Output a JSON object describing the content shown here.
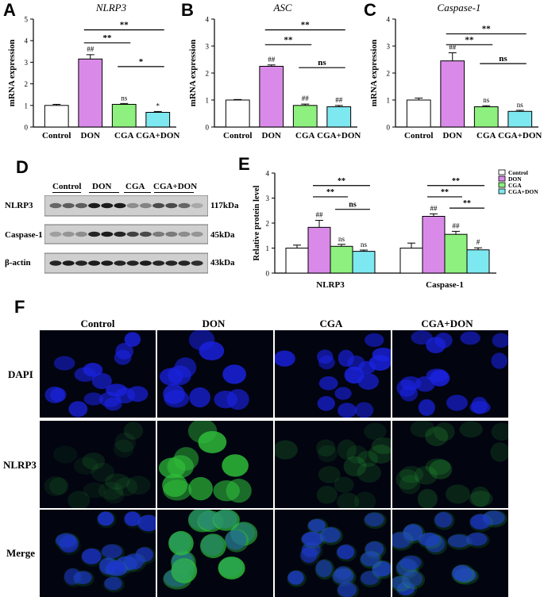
{
  "panels": {
    "A": "A",
    "B": "B",
    "C": "C",
    "D": "D",
    "E": "E",
    "F": "F"
  },
  "colors": {
    "control": "#ffffff",
    "don": "#d98ae8",
    "cga": "#8ef07e",
    "cga_don": "#7ee8f0",
    "dapi": "#1a22e0",
    "nlrp3_green": "#2fbf3a"
  },
  "chart_data": [
    {
      "id": "A",
      "type": "bar",
      "title": "NLRP3",
      "ylabel": "mRNA expression",
      "categories": [
        "Control",
        "DON",
        "CGA",
        "CGA+DON"
      ],
      "values": [
        1.0,
        3.15,
        1.05,
        0.68
      ],
      "errors": [
        0.05,
        0.2,
        0.04,
        0.04
      ],
      "bar_labels": [
        "",
        "##",
        "ns",
        "*"
      ],
      "ylim": [
        0,
        5
      ],
      "yticks": [
        0,
        1,
        2,
        3,
        4,
        5
      ],
      "brackets": [
        {
          "from": 1,
          "to": 3,
          "label": "**",
          "level": 4.5
        },
        {
          "from": 1,
          "to": 2,
          "label": "**",
          "level": 3.9
        },
        {
          "from": 2,
          "to": 3,
          "label": "*",
          "level": 2.8
        }
      ]
    },
    {
      "id": "B",
      "type": "bar",
      "title": "ASC",
      "ylabel": "mRNA expression",
      "categories": [
        "Control",
        "DON",
        "CGA",
        "CGA+DON"
      ],
      "values": [
        1.0,
        2.25,
        0.8,
        0.75
      ],
      "errors": [
        0.02,
        0.05,
        0.05,
        0.05
      ],
      "bar_labels": [
        "",
        "##",
        "##",
        "##"
      ],
      "ylim": [
        0,
        4
      ],
      "yticks": [
        0,
        1,
        2,
        3,
        4
      ],
      "brackets": [
        {
          "from": 1,
          "to": 3,
          "label": "**",
          "level": 3.6
        },
        {
          "from": 1,
          "to": 2,
          "label": "**",
          "level": 3.05
        },
        {
          "from": 2,
          "to": 3,
          "label": "ns",
          "level": 2.2
        }
      ]
    },
    {
      "id": "C",
      "type": "bar",
      "title": "Caspase-1",
      "ylabel": "mRNA expression",
      "categories": [
        "Control",
        "DON",
        "CGA",
        "CGA+DON"
      ],
      "values": [
        1.0,
        2.45,
        0.75,
        0.58
      ],
      "errors": [
        0.07,
        0.3,
        0.04,
        0.04
      ],
      "bar_labels": [
        "",
        "##",
        "ns",
        "ns"
      ],
      "ylim": [
        0,
        4
      ],
      "yticks": [
        0,
        1,
        2,
        3,
        4
      ],
      "brackets": [
        {
          "from": 1,
          "to": 3,
          "label": "**",
          "level": 3.45
        },
        {
          "from": 1,
          "to": 2,
          "label": "**",
          "level": 3.05
        },
        {
          "from": 2,
          "to": 3,
          "label": "ns",
          "level": 2.35
        }
      ]
    },
    {
      "id": "E",
      "type": "bar",
      "ylabel": "Relative protein level",
      "categories": [
        "NLRP3",
        "Caspase-1"
      ],
      "series": [
        {
          "name": "Control",
          "values": [
            1.0,
            1.0
          ],
          "errors": [
            0.12,
            0.2
          ],
          "labels": [
            "",
            ""
          ]
        },
        {
          "name": "DON",
          "values": [
            1.83,
            2.27
          ],
          "errors": [
            0.28,
            0.1
          ],
          "labels": [
            "##",
            "##"
          ]
        },
        {
          "name": "CGA",
          "values": [
            1.07,
            1.55
          ],
          "errors": [
            0.08,
            0.12
          ],
          "labels": [
            "ns",
            "##"
          ]
        },
        {
          "name": "CGA+DON",
          "values": [
            0.87,
            0.93
          ],
          "errors": [
            0.05,
            0.08
          ],
          "labels": [
            "ns",
            "#"
          ]
        }
      ],
      "ylim": [
        0,
        4
      ],
      "yticks": [
        0,
        1,
        2,
        3,
        4
      ],
      "legend": "top-right",
      "brackets": [
        {
          "group": 0,
          "from": 1,
          "to": 3,
          "label": "**",
          "level": 3.5
        },
        {
          "group": 0,
          "from": 1,
          "to": 2,
          "label": "**",
          "level": 3.05
        },
        {
          "group": 0,
          "from": 2,
          "to": 3,
          "label": "ns",
          "level": 2.55
        },
        {
          "group": 1,
          "from": 1,
          "to": 3,
          "label": "**",
          "level": 3.5
        },
        {
          "group": 1,
          "from": 1,
          "to": 2,
          "label": "**",
          "level": 3.05
        },
        {
          "group": 1,
          "from": 2,
          "to": 3,
          "label": "**",
          "level": 2.6
        }
      ]
    }
  ],
  "western_blot": {
    "groups": [
      "Control",
      "DON",
      "CGA",
      "CGA+DON"
    ],
    "rows": [
      {
        "name": "NLRP3",
        "size": "117kDa"
      },
      {
        "name": "Caspase-1",
        "size": "45kDa"
      },
      {
        "name": "β-actin",
        "size": "43kDa"
      }
    ]
  },
  "microscopy": {
    "columns": [
      "Control",
      "DON",
      "CGA",
      "CGA+DON"
    ],
    "rows": [
      "DAPI",
      "NLRP3",
      "Merge"
    ]
  }
}
